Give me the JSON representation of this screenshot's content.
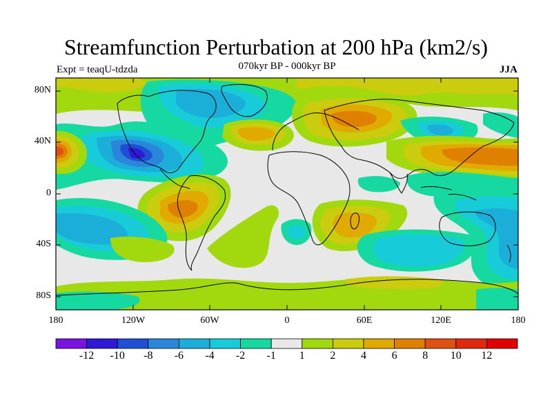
{
  "title": "Streamfunction Perturbation at 200 hPa (km2/s)",
  "experiment": "Expt = teaqU-tdzda",
  "period": "070kyr BP - 000kyr BP",
  "season": "JJA",
  "lat_ticks": [
    "80N",
    "40N",
    "0",
    "40S",
    "80S"
  ],
  "lon_ticks": [
    "180",
    "120W",
    "60W",
    "0",
    "60E",
    "120E",
    "180"
  ],
  "colorbar": {
    "labels": [
      "-12",
      "-10",
      "-8",
      "-6",
      "-4",
      "-2",
      "-1",
      "1",
      "2",
      "4",
      "6",
      "8",
      "10",
      "12"
    ],
    "colors": [
      "#7a12e0",
      "#2e1ad6",
      "#1e4fd4",
      "#2a86db",
      "#1aaed8",
      "#18cbd8",
      "#16d9a2",
      "#e8e8e8",
      "#a2d80e",
      "#cccc0e",
      "#e0aa00",
      "#e08000",
      "#e05010",
      "#e02810",
      "#e00000"
    ]
  },
  "palette": {
    "background": "#e8e8e8",
    "coast": "#000000"
  }
}
